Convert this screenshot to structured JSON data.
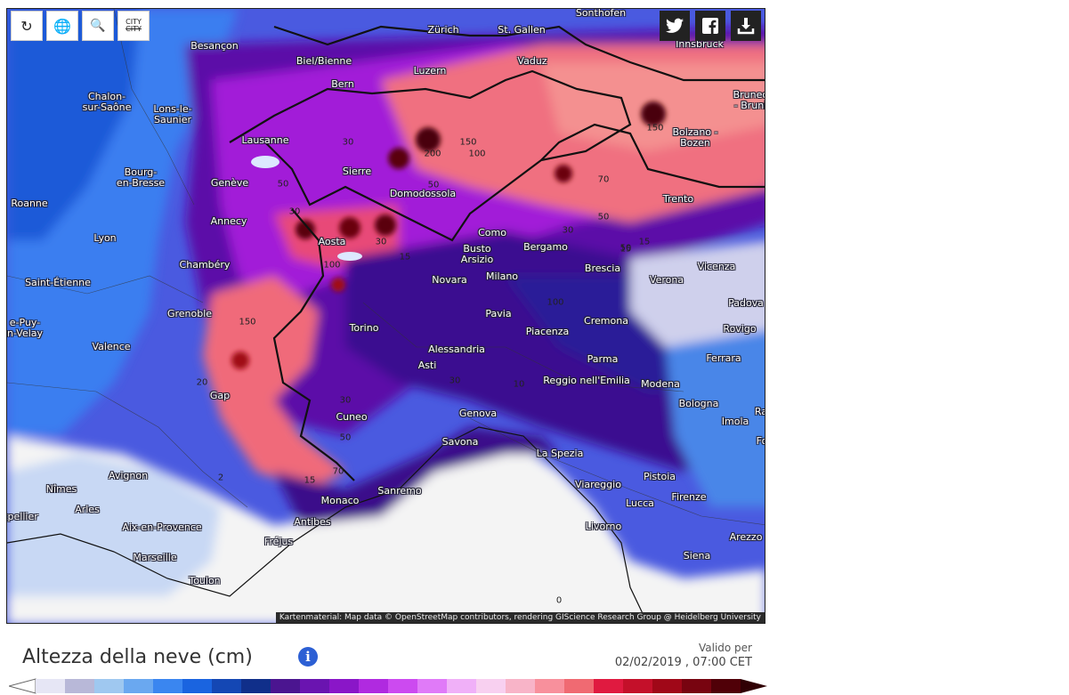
{
  "toolbar": {
    "refresh_icon": "refresh-icon",
    "globe_icon": "globe-icon",
    "zoom_icon": "zoom-out-icon",
    "city_toggle": "CITY",
    "city_toggle_strike": "CITY"
  },
  "share": {
    "twitter": "twitter-icon",
    "facebook": "facebook-icon",
    "download": "download-icon"
  },
  "map": {
    "attribution": "Kartenmaterial: Map data © OpenStreetMap contributors, rendering GIScience Research Group @ Heidelberg University",
    "cities": [
      {
        "name": "Besançon"
      },
      {
        "name": "Zürich"
      },
      {
        "name": "St. Gallen"
      },
      {
        "name": "Sonthofen"
      },
      {
        "name": "Innsbruck"
      },
      {
        "name": "Biel/Bienne"
      },
      {
        "name": "Luzern"
      },
      {
        "name": "Vaduz"
      },
      {
        "name": "Chalon-\nsur-Saône"
      },
      {
        "name": "Lons-le-\nSaunier"
      },
      {
        "name": "Bern"
      },
      {
        "name": "Brunec\n- Bruni"
      },
      {
        "name": "Lausanne"
      },
      {
        "name": "Bolzano -\nBozen"
      },
      {
        "name": "Bourg-\nen-Bresse"
      },
      {
        "name": "Sierre"
      },
      {
        "name": "Genève"
      },
      {
        "name": "Domodossola"
      },
      {
        "name": "Trento"
      },
      {
        "name": "Roanne"
      },
      {
        "name": "Annecy"
      },
      {
        "name": "Aosta"
      },
      {
        "name": "Como"
      },
      {
        "name": "Bergamo"
      },
      {
        "name": "Lyon"
      },
      {
        "name": "Busto\nArsizio"
      },
      {
        "name": "Chambéry"
      },
      {
        "name": "Brescia"
      },
      {
        "name": "Vicenza"
      },
      {
        "name": "Saint-Étienne"
      },
      {
        "name": "Novara"
      },
      {
        "name": "Milano"
      },
      {
        "name": "Verona"
      },
      {
        "name": "Padova"
      },
      {
        "name": "Grenoble"
      },
      {
        "name": "Pavia"
      },
      {
        "name": "Cremona"
      },
      {
        "name": "Torino"
      },
      {
        "name": "e-Puy-\nn-Velay"
      },
      {
        "name": "Piacenza"
      },
      {
        "name": "Rovigo"
      },
      {
        "name": "Valence"
      },
      {
        "name": "Alessandria"
      },
      {
        "name": "Asti"
      },
      {
        "name": "Parma"
      },
      {
        "name": "Ferrara"
      },
      {
        "name": "Reggio nell'Emilia"
      },
      {
        "name": "Modena"
      },
      {
        "name": "Gap"
      },
      {
        "name": "Bologna"
      },
      {
        "name": "Imola"
      },
      {
        "name": "Cuneo"
      },
      {
        "name": "Genova"
      },
      {
        "name": "Savona"
      },
      {
        "name": "La Spezia"
      },
      {
        "name": "Pistoia"
      },
      {
        "name": "Avignon"
      },
      {
        "name": "Nîmes"
      },
      {
        "name": "Viareggio"
      },
      {
        "name": "Firenze"
      },
      {
        "name": "Arles"
      },
      {
        "name": "Lucca"
      },
      {
        "name": "Monaco"
      },
      {
        "name": "Sanremo"
      },
      {
        "name": "ntpellier"
      },
      {
        "name": "Antibes"
      },
      {
        "name": "Aix-en-Provence"
      },
      {
        "name": "Livorno"
      },
      {
        "name": "Fréjus"
      },
      {
        "name": "Arezzo"
      },
      {
        "name": "Marseille"
      },
      {
        "name": "Siena"
      },
      {
        "name": "Toulon"
      },
      {
        "name": "Ra"
      },
      {
        "name": "Fo"
      }
    ],
    "contour_labels": [
      "30",
      "200",
      "150",
      "100",
      "70",
      "50",
      "30",
      "50",
      "150",
      "50",
      "100",
      "15",
      "30",
      "50",
      "15",
      "100",
      "150",
      "30",
      "30",
      "50",
      "70",
      "15",
      "2",
      "0",
      "10",
      "20",
      "15",
      "30"
    ]
  },
  "footer": {
    "title": "Altezza della neve (cm)",
    "info_icon": "info-icon",
    "valid_label": "Valido per",
    "valid_date": "02/02/2019 , 07:00 CET"
  },
  "legend": {
    "colors": [
      "#e6e6f5",
      "#b8b8d8",
      "#9fc8f0",
      "#6aa8f0",
      "#3a86f0",
      "#1a64e0",
      "#1447b4",
      "#102f8a",
      "#4b1590",
      "#6a14b0",
      "#8a16c8",
      "#b02ae0",
      "#cc4af0",
      "#e07af8",
      "#f0b0f8",
      "#f8d0f0",
      "#f8b4c8",
      "#f8909c",
      "#f06a72",
      "#e01a40",
      "#c4102a",
      "#a00818",
      "#780410",
      "#500008"
    ]
  }
}
